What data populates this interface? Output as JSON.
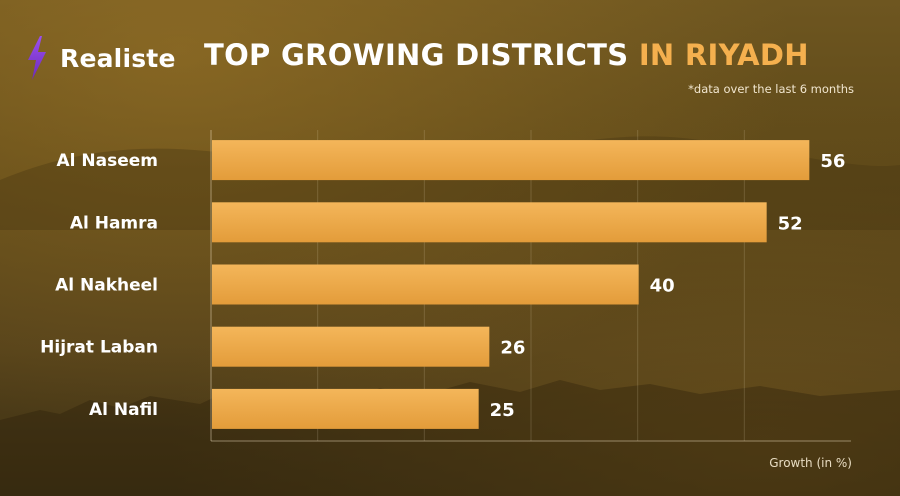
{
  "brand": {
    "name": "Realiste",
    "icon": "lightning-bolt-icon",
    "icon_color": "#8a3fd8"
  },
  "header": {
    "title_main": "TOP GROWING DISTRICTS",
    "title_accent": "IN RIYADH",
    "note": "*data over the last 6 months"
  },
  "colors": {
    "bar_top": "#f4b65a",
    "bar_bottom": "#e39c3a",
    "accent": "#f5b04e"
  },
  "chart_data": {
    "type": "bar",
    "orientation": "horizontal",
    "categories": [
      "Al Naseem",
      "Al Hamra",
      "Al Nakheel",
      "Hijrat Laban",
      "Al Nafil"
    ],
    "values": [
      56,
      52,
      40,
      26,
      25
    ],
    "title": "TOP GROWING DISTRICTS IN RIYADH",
    "xlabel": "Growth (in %)",
    "ylabel": "",
    "xlim": [
      0,
      60
    ],
    "grid": true,
    "value_labels": true
  }
}
